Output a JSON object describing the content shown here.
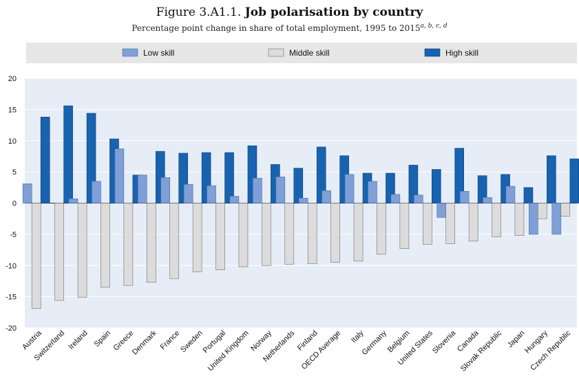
{
  "figure": {
    "number": "Figure 3.A1.1.",
    "title": "Job polarisation by country",
    "subtitle": "Percentage point change in share of total employment, 1995 to 2015",
    "subtitle_notes": "a, b, c, d"
  },
  "colors": {
    "low": "#7f9fd6",
    "middle": "#dcdcdc",
    "high": "#1763b0",
    "plot_bg": "#e7edf6",
    "legend_bg": "#e6e6e6",
    "grid": "#ffffff"
  },
  "chart_data": {
    "type": "bar",
    "title": "Job polarisation by country",
    "subtitle": "Percentage point change in share of total employment, 1995 to 2015",
    "legend_position": "top",
    "grid": true,
    "ylim": [
      -20,
      20
    ],
    "yticks": [
      20,
      15,
      10,
      5,
      0,
      -5,
      -10,
      -15,
      -20
    ],
    "categories": [
      "Austria",
      "Switzerland",
      "Ireland",
      "Spain",
      "Greece",
      "Denmark",
      "France",
      "Sweden",
      "Portugal",
      "United Kingdom",
      "Norway",
      "Netherlands",
      "Finland",
      "OECD Average",
      "Italy",
      "Germany",
      "Belgium",
      "United States",
      "Slovenia",
      "Canada",
      "Slovak Republic",
      "Japan",
      "Hungary",
      "Czech Republic"
    ],
    "series": [
      {
        "name": "Low skill",
        "values": [
          3.1,
          0,
          0.7,
          3.5,
          8.7,
          4.5,
          4.1,
          3.0,
          2.8,
          1.1,
          4.0,
          4.2,
          0.8,
          2.0,
          4.6,
          3.5,
          1.4,
          1.3,
          -2.3,
          1.9,
          0.9,
          2.7,
          -5.0,
          -5.0
        ]
      },
      {
        "name": "Middle skill",
        "values": [
          -16.9,
          -15.6,
          -15.1,
          -13.5,
          -13.2,
          -12.7,
          -12.1,
          -11.0,
          -10.7,
          -10.2,
          -10.0,
          -9.8,
          -9.7,
          -9.5,
          -9.3,
          -8.2,
          -7.3,
          -6.6,
          -6.5,
          -6.1,
          -5.4,
          -5.2,
          -2.5,
          -2.1
        ]
      },
      {
        "name": "High skill",
        "values": [
          13.8,
          15.6,
          14.4,
          10.3,
          4.5,
          8.3,
          8.0,
          8.1,
          8.1,
          9.2,
          6.2,
          5.6,
          9.0,
          7.6,
          4.8,
          4.8,
          6.1,
          5.4,
          8.8,
          4.4,
          4.6,
          2.5,
          7.6,
          7.1
        ]
      }
    ]
  }
}
